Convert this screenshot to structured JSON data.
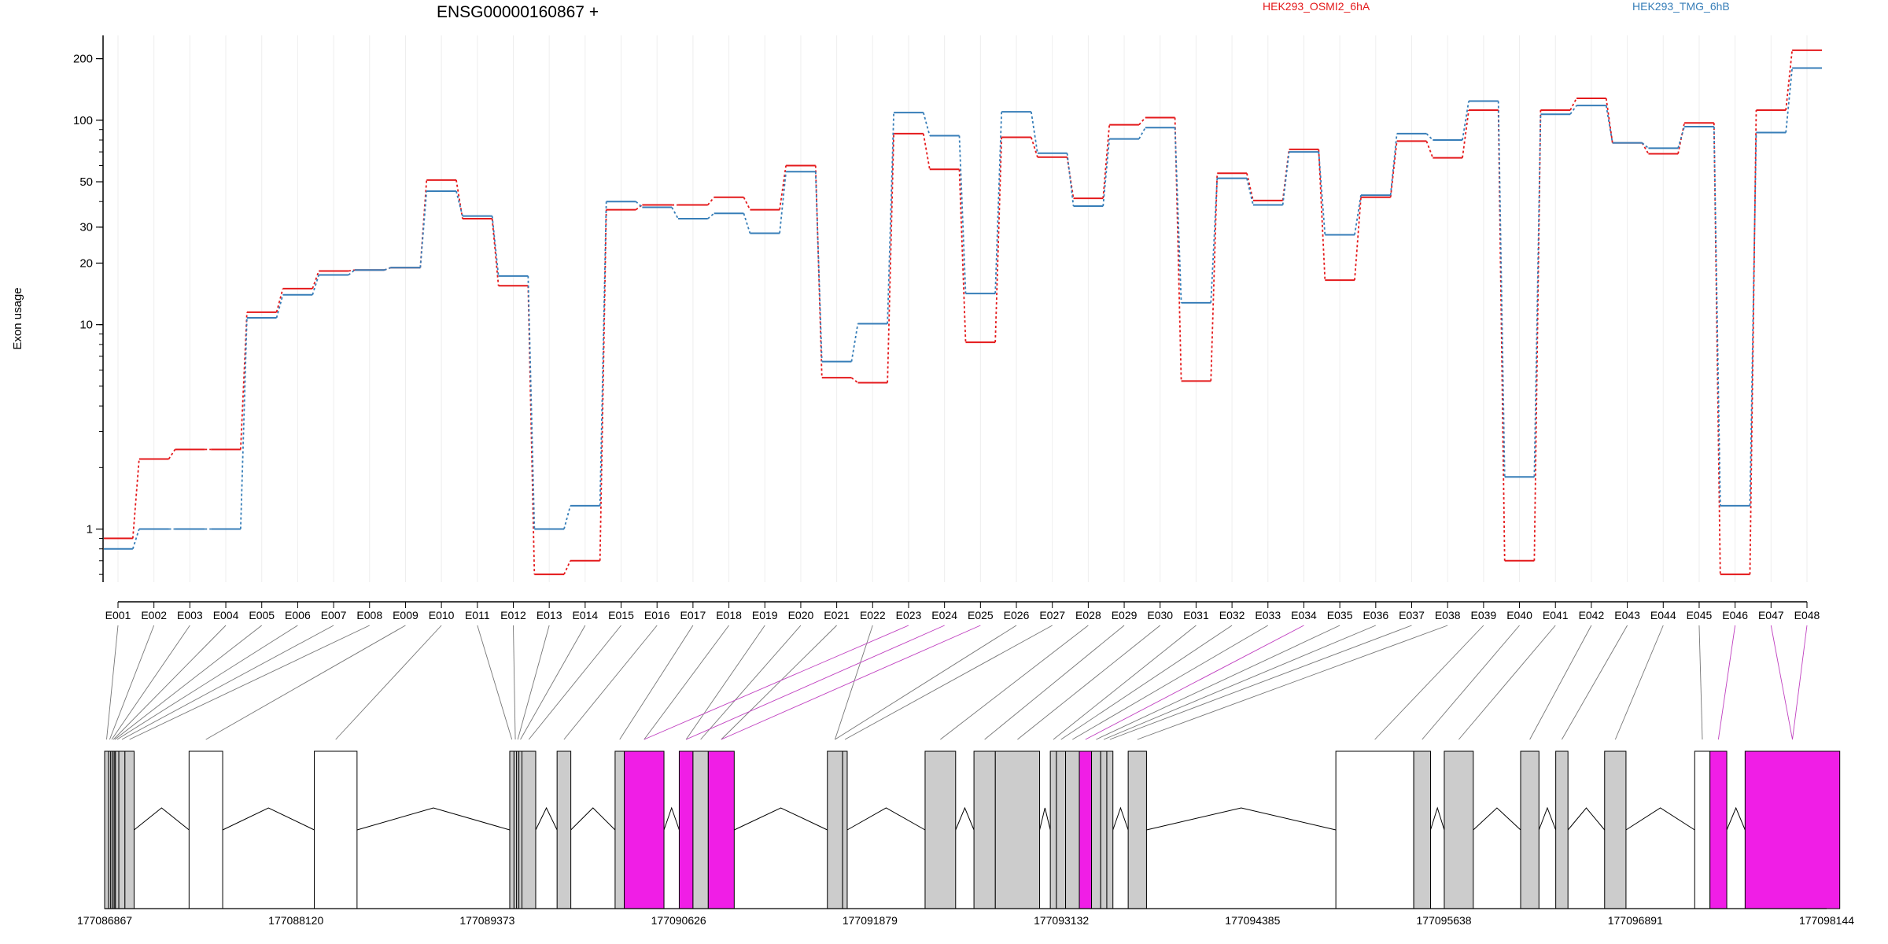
{
  "chart_data": {
    "type": "line",
    "title": "ENSG00000160867 +",
    "ylabel": "Exon usage",
    "yscale": "log",
    "ylim": [
      0.55,
      260
    ],
    "yticks": [
      1,
      10,
      20,
      30,
      50,
      100,
      200
    ],
    "ytick_labels": [
      "1",
      "10",
      "20",
      "30",
      "50",
      "100",
      "200"
    ],
    "categories": [
      "E001",
      "E002",
      "E003",
      "E004",
      "E005",
      "E006",
      "E007",
      "E008",
      "E009",
      "E010",
      "E011",
      "E012",
      "E013",
      "E014",
      "E015",
      "E016",
      "E017",
      "E018",
      "E019",
      "E020",
      "E021",
      "E022",
      "E023",
      "E024",
      "E025",
      "E026",
      "E027",
      "E028",
      "E029",
      "E030",
      "E031",
      "E032",
      "E033",
      "E034",
      "E035",
      "E036",
      "E037",
      "E038",
      "E039",
      "E040",
      "E041",
      "E042",
      "E043",
      "E044",
      "E045",
      "E046",
      "E047",
      "E048"
    ],
    "series": [
      {
        "name": "HEK293_OSMI2_6hA",
        "color": "#e41a1c",
        "values": [
          0.9,
          2.2,
          2.45,
          2.45,
          11.5,
          15,
          18.3,
          18.5,
          19,
          51,
          33,
          15.5,
          0.6,
          0.7,
          36.5,
          38.5,
          38.5,
          42,
          36.5,
          60,
          5.5,
          5.2,
          86,
          57.5,
          8.2,
          82.5,
          66,
          41.5,
          95,
          103,
          5.3,
          55,
          40.5,
          72,
          16.5,
          42,
          79,
          65.5,
          112,
          0.7,
          112,
          128,
          77.5,
          68.5,
          97,
          0.6,
          112,
          220
        ]
      },
      {
        "name": "HEK293_TMG_6hB",
        "color": "#377eb8",
        "values": [
          0.8,
          1.0,
          1.0,
          1.0,
          10.8,
          14,
          17.5,
          18.5,
          19,
          45,
          34,
          17.3,
          1.0,
          1.3,
          40,
          37.5,
          33,
          35,
          28,
          56,
          6.6,
          10.1,
          109,
          84,
          14.2,
          110,
          69,
          38,
          81,
          92,
          12.8,
          52,
          38.5,
          70,
          27.5,
          43,
          86,
          80,
          124,
          1.8,
          107,
          118,
          77.5,
          73,
          93,
          1.3,
          87,
          180
        ]
      }
    ],
    "gene_model": {
      "coordinate_ticks": [
        "177086867",
        "177088120",
        "177089373",
        "177090626",
        "177091879",
        "177093132",
        "177094385",
        "177095638",
        "177096891",
        "177098144"
      ],
      "coordinate_tick_values": [
        177086867,
        177088120,
        177089373,
        177090626,
        177091879,
        177093132,
        177094385,
        177095638,
        177096891,
        177098144
      ],
      "exon_bins": [
        {
          "id": "E001",
          "start": 177086867,
          "end": 177086893,
          "status": "tested"
        },
        {
          "id": "E002",
          "start": 177086893,
          "end": 177086907,
          "status": "tested"
        },
        {
          "id": "E003",
          "start": 177086907,
          "end": 177086920,
          "status": "tested"
        },
        {
          "id": "E004",
          "start": 177086920,
          "end": 177086930,
          "status": "tested"
        },
        {
          "id": "E005",
          "start": 177086930,
          "end": 177086938,
          "status": "tested"
        },
        {
          "id": "E006",
          "start": 177086938,
          "end": 177086960,
          "status": "tested"
        },
        {
          "id": "E007",
          "start": 177086960,
          "end": 177087000,
          "status": "tested"
        },
        {
          "id": "E008",
          "start": 177087000,
          "end": 177087060,
          "status": "tested"
        },
        {
          "id": "E009",
          "start": 177087420,
          "end": 177087640,
          "status": "untested"
        },
        {
          "id": "E010",
          "start": 177088240,
          "end": 177088520,
          "status": "untested"
        },
        {
          "id": "E011",
          "start": 177089520,
          "end": 177089548,
          "status": "tested"
        },
        {
          "id": "E012",
          "start": 177089548,
          "end": 177089565,
          "status": "tested"
        },
        {
          "id": "E013",
          "start": 177089565,
          "end": 177089580,
          "status": "tested"
        },
        {
          "id": "E014",
          "start": 177089580,
          "end": 177089600,
          "status": "tested"
        },
        {
          "id": "E015",
          "start": 177089600,
          "end": 177089690,
          "status": "tested"
        },
        {
          "id": "E016",
          "start": 177089830,
          "end": 177089920,
          "status": "tested"
        },
        {
          "id": "E017",
          "start": 177090210,
          "end": 177090270,
          "status": "tested"
        },
        {
          "id": "E018",
          "start": 177090270,
          "end": 177090530,
          "status": "significant"
        },
        {
          "id": "E019",
          "start": 177090630,
          "end": 177090720,
          "status": "significant"
        },
        {
          "id": "E020",
          "start": 177090720,
          "end": 177090820,
          "status": "tested"
        },
        {
          "id": "E021",
          "start": 177090820,
          "end": 177090990,
          "status": "significant"
        },
        {
          "id": "E022",
          "start": 177091600,
          "end": 177091700,
          "status": "tested"
        },
        {
          "id": "E023",
          "start": 177091700,
          "end": 177091730,
          "status": "tested"
        },
        {
          "id": "E024",
          "start": 177092240,
          "end": 177092440,
          "status": "tested"
        },
        {
          "id": "E025",
          "start": 177092560,
          "end": 177092700,
          "status": "tested"
        },
        {
          "id": "E026",
          "start": 177092700,
          "end": 177092990,
          "status": "tested"
        },
        {
          "id": "E027",
          "start": 177093060,
          "end": 177093100,
          "status": "tested"
        },
        {
          "id": "E028",
          "start": 177093100,
          "end": 177093160,
          "status": "tested"
        },
        {
          "id": "E029",
          "start": 177093160,
          "end": 177093250,
          "status": "tested"
        },
        {
          "id": "E030",
          "start": 177093250,
          "end": 177093330,
          "status": "significant"
        },
        {
          "id": "E031",
          "start": 177093330,
          "end": 177093390,
          "status": "tested"
        },
        {
          "id": "E032",
          "start": 177093390,
          "end": 177093430,
          "status": "tested"
        },
        {
          "id": "E033",
          "start": 177093430,
          "end": 177093470,
          "status": "tested"
        },
        {
          "id": "E034",
          "start": 177093570,
          "end": 177093690,
          "status": "tested"
        },
        {
          "id": "E035",
          "start": 177094930,
          "end": 177095440,
          "status": "untested"
        },
        {
          "id": "E036",
          "start": 177095440,
          "end": 177095550,
          "status": "tested"
        },
        {
          "id": "E037",
          "start": 177095640,
          "end": 177095830,
          "status": "tested"
        },
        {
          "id": "E038",
          "start": 177096140,
          "end": 177096260,
          "status": "tested"
        },
        {
          "id": "E039",
          "start": 177096370,
          "end": 177096450,
          "status": "tested"
        },
        {
          "id": "E040",
          "start": 177096690,
          "end": 177096830,
          "status": "tested"
        },
        {
          "id": "E041",
          "start": 177097280,
          "end": 177097380,
          "status": "untested"
        },
        {
          "id": "E042",
          "start": 177097380,
          "end": 177097490,
          "status": "significant"
        },
        {
          "id": "E043",
          "start": 177097610,
          "end": 177098230,
          "status": "significant"
        }
      ],
      "bin_links": [
        {
          "exon": "E001",
          "to": "E001",
          "significant": false
        },
        {
          "exon": "E002",
          "to": "E002",
          "significant": false
        },
        {
          "exon": "E003",
          "to": "E003",
          "significant": false
        },
        {
          "exon": "E004",
          "to": "E004",
          "significant": false
        },
        {
          "exon": "E005",
          "to": "E005",
          "significant": false
        },
        {
          "exon": "E006",
          "to": "E006",
          "significant": false
        },
        {
          "exon": "E007",
          "to": "E007",
          "significant": false
        },
        {
          "exon": "E008",
          "to": "E008",
          "significant": false
        },
        {
          "exon": "E009",
          "to": "E009",
          "significant": false
        },
        {
          "exon": "E010",
          "to": "E010",
          "significant": false
        },
        {
          "exon": "E011",
          "to": "E011",
          "significant": false
        },
        {
          "exon": "E012",
          "to": "E012",
          "significant": false
        },
        {
          "exon": "E013",
          "to": "E013",
          "significant": false
        },
        {
          "exon": "E014",
          "to": "E014",
          "significant": false
        },
        {
          "exon": "E015",
          "to": "E015",
          "significant": false
        },
        {
          "exon": "E016",
          "to": "E016",
          "significant": false
        },
        {
          "exon": "E017",
          "to": "E017",
          "significant": false
        },
        {
          "exon": "E018",
          "to": "E018",
          "significant": false
        },
        {
          "exon": "E019",
          "to": "E019",
          "significant": false
        },
        {
          "exon": "E020",
          "to": "E020",
          "significant": false
        },
        {
          "exon": "E021",
          "to": "E021",
          "significant": false
        },
        {
          "exon": "E022",
          "to": "E022",
          "significant": false
        },
        {
          "exon": "E023",
          "to": "E018",
          "significant": true
        },
        {
          "exon": "E024",
          "to": "E019",
          "significant": true
        },
        {
          "exon": "E025",
          "to": "E021",
          "significant": true
        },
        {
          "exon": "E026",
          "to": "E022",
          "significant": false
        },
        {
          "exon": "E027",
          "to": "E023",
          "significant": false
        },
        {
          "exon": "E028",
          "to": "E024",
          "significant": false
        },
        {
          "exon": "E029",
          "to": "E025",
          "significant": false
        },
        {
          "exon": "E030",
          "to": "E026",
          "significant": false
        },
        {
          "exon": "E031",
          "to": "E027",
          "significant": false
        },
        {
          "exon": "E032",
          "to": "E028",
          "significant": false
        },
        {
          "exon": "E033",
          "to": "E029",
          "significant": false
        },
        {
          "exon": "E034",
          "to": "E030",
          "significant": true
        },
        {
          "exon": "E035",
          "to": "E031",
          "significant": false
        },
        {
          "exon": "E036",
          "to": "E032",
          "significant": false
        },
        {
          "exon": "E037",
          "to": "E033",
          "significant": false
        },
        {
          "exon": "E038",
          "to": "E034",
          "significant": false
        },
        {
          "exon": "E039",
          "to": "E035",
          "significant": false
        },
        {
          "exon": "E040",
          "to": "E036",
          "significant": false
        },
        {
          "exon": "E041",
          "to": "E037",
          "significant": false
        },
        {
          "exon": "E042",
          "to": "E038",
          "significant": false
        },
        {
          "exon": "E043",
          "to": "E039",
          "significant": false
        },
        {
          "exon": "E044",
          "to": "E040",
          "significant": false
        },
        {
          "exon": "E045",
          "to": "E041",
          "significant": false
        },
        {
          "exon": "E046",
          "to": "E042",
          "significant": true
        },
        {
          "exon": "E047",
          "to": "E043",
          "significant": true
        },
        {
          "exon": "E048",
          "to": "E043",
          "significant": true
        }
      ]
    },
    "colors": {
      "significant_exon": "#f01ee6",
      "tested_exon": "#cccccc",
      "untested_exon": "#ffffff",
      "gridline": "#eeeeee"
    }
  }
}
